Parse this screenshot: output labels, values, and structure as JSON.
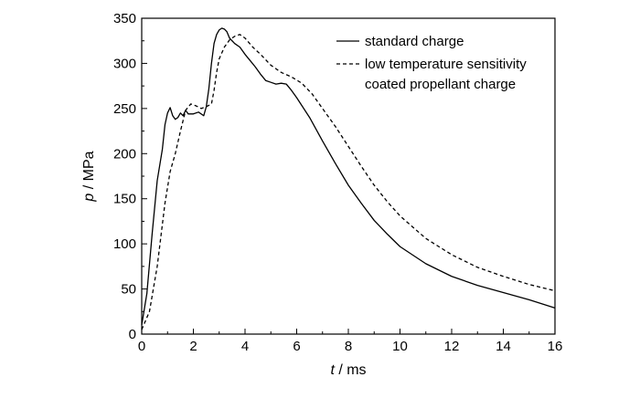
{
  "chart_data": {
    "type": "line",
    "title": "",
    "xlabel_var": "t",
    "xlabel_unit": " / ms",
    "ylabel_var": "p",
    "ylabel_unit": " / MPa",
    "xlim": [
      0,
      16
    ],
    "ylim": [
      0,
      350
    ],
    "xticks": [
      0,
      2,
      4,
      6,
      8,
      10,
      12,
      14,
      16
    ],
    "yticks": [
      0,
      50,
      100,
      150,
      200,
      250,
      300,
      350
    ],
    "grid": false,
    "legend_position": "top-right",
    "series": [
      {
        "name": "standard charge",
        "line_style": "solid",
        "color": "#000000",
        "x": [
          0,
          0.2,
          0.4,
          0.6,
          0.8,
          0.9,
          1.0,
          1.1,
          1.2,
          1.3,
          1.4,
          1.5,
          1.6,
          1.7,
          1.8,
          2.0,
          2.2,
          2.4,
          2.5,
          2.6,
          2.7,
          2.8,
          2.9,
          3.0,
          3.1,
          3.2,
          3.3,
          3.4,
          3.6,
          3.8,
          4.0,
          4.2,
          4.4,
          4.6,
          4.8,
          5.0,
          5.2,
          5.4,
          5.6,
          5.8,
          6.0,
          6.5,
          7.0,
          7.5,
          8.0,
          8.5,
          9.0,
          9.5,
          10.0,
          11.0,
          12.0,
          13.0,
          14.0,
          15.0,
          16.0
        ],
        "y": [
          10,
          45,
          110,
          170,
          205,
          232,
          245,
          251,
          242,
          238,
          240,
          245,
          242,
          248,
          244,
          244,
          246,
          242,
          252,
          272,
          300,
          322,
          332,
          337,
          339,
          338,
          335,
          328,
          322,
          318,
          310,
          303,
          296,
          288,
          281,
          279,
          277,
          278,
          277,
          270,
          262,
          240,
          214,
          189,
          165,
          145,
          126,
          111,
          97,
          78,
          64,
          54,
          46,
          38,
          29
        ]
      },
      {
        "name": "low temperature sensitivity coated propellant charge",
        "line_style": "dashed",
        "color": "#000000",
        "x": [
          0,
          0.3,
          0.6,
          0.9,
          1.1,
          1.3,
          1.5,
          1.7,
          1.9,
          2.1,
          2.3,
          2.5,
          2.7,
          2.8,
          2.9,
          3.0,
          3.2,
          3.4,
          3.6,
          3.8,
          4.0,
          4.3,
          4.6,
          5.0,
          5.4,
          5.8,
          6.2,
          6.6,
          7.0,
          7.5,
          8.0,
          8.5,
          9.0,
          9.5,
          10.0,
          11.0,
          12.0,
          13.0,
          14.0,
          15.0,
          16.0
        ],
        "y": [
          5,
          25,
          75,
          145,
          180,
          200,
          225,
          248,
          255,
          253,
          250,
          252,
          255,
          270,
          290,
          305,
          318,
          326,
          330,
          332,
          328,
          318,
          310,
          298,
          290,
          285,
          278,
          266,
          250,
          230,
          208,
          186,
          165,
          147,
          131,
          106,
          88,
          74,
          64,
          55,
          48
        ]
      }
    ]
  }
}
